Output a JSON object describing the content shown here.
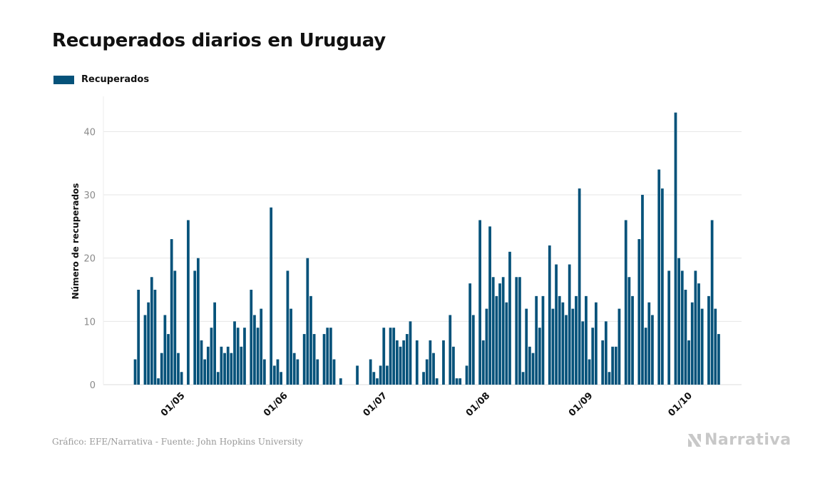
{
  "title": "Recuperados diarios en Uruguay",
  "source": "Gráfico: EFE/Narrativa - Fuente: John Hopkins University",
  "logo_text": "Narrativa",
  "colors": {
    "bar": "#05527a",
    "grid": "#e6e6e6",
    "text": "#111111",
    "tick": "#8a8a8a"
  },
  "chart_data": {
    "type": "bar",
    "title": "Recuperados diarios en Uruguay",
    "ylabel": "Número de recuperados",
    "xlabel": "",
    "ylim": [
      0,
      45
    ],
    "yticks": [
      0,
      10,
      20,
      30,
      40
    ],
    "grid": true,
    "legend": "top-left",
    "series": [
      {
        "name": "Recuperados",
        "start_date": "2020-04-15",
        "values": [
          0,
          4,
          15,
          0,
          11,
          13,
          17,
          15,
          1,
          5,
          11,
          8,
          23,
          18,
          5,
          2,
          0,
          26,
          0,
          18,
          20,
          7,
          4,
          6,
          9,
          13,
          2,
          6,
          5,
          6,
          5,
          10,
          9,
          6,
          9,
          0,
          15,
          11,
          9,
          12,
          4,
          0,
          28,
          3,
          4,
          2,
          0,
          18,
          12,
          5,
          4,
          0,
          8,
          20,
          14,
          8,
          4,
          0,
          8,
          9,
          9,
          4,
          0,
          1,
          0,
          0,
          0,
          0,
          3,
          0,
          0,
          0,
          4,
          2,
          1,
          3,
          9,
          3,
          9,
          9,
          7,
          6,
          7,
          8,
          10,
          0,
          7,
          0,
          2,
          4,
          7,
          5,
          1,
          0,
          7,
          0,
          11,
          6,
          1,
          1,
          0,
          3,
          16,
          11,
          0,
          26,
          7,
          12,
          25,
          17,
          14,
          16,
          17,
          13,
          21,
          0,
          17,
          17,
          2,
          12,
          6,
          5,
          14,
          9,
          14,
          0,
          22,
          12,
          19,
          14,
          13,
          11,
          19,
          12,
          14,
          31,
          10,
          14,
          4,
          9,
          13,
          0,
          7,
          10,
          2,
          6,
          6,
          12,
          0,
          26,
          17,
          14,
          0,
          23,
          30,
          9,
          13,
          11,
          0,
          34,
          31,
          0,
          18,
          0,
          43,
          20,
          18,
          15,
          7,
          13,
          18,
          16,
          12,
          0,
          14,
          26,
          12,
          8
        ]
      }
    ],
    "x_ticks": [
      {
        "label": "01/05",
        "date": "2020-05-01"
      },
      {
        "label": "01/06",
        "date": "2020-06-01"
      },
      {
        "label": "01/07",
        "date": "2020-07-01"
      },
      {
        "label": "01/08",
        "date": "2020-08-01"
      },
      {
        "label": "01/09",
        "date": "2020-09-01"
      },
      {
        "label": "01/10",
        "date": "2020-10-01"
      }
    ]
  }
}
